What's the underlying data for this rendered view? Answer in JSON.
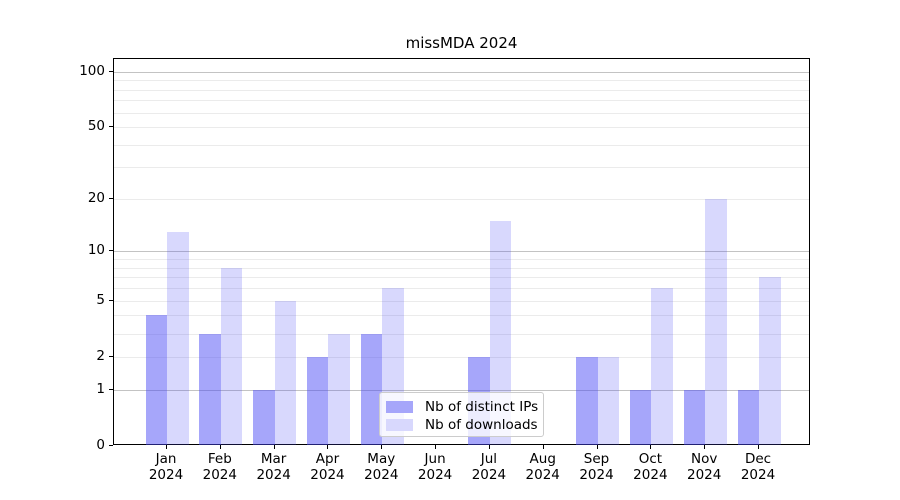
{
  "figure": {
    "title": "missMDA 2024"
  },
  "chart_data": {
    "type": "bar",
    "title": "missMDA 2024",
    "categories": [
      "Jan 2024",
      "Feb 2024",
      "Mar 2024",
      "Apr 2024",
      "May 2024",
      "Jun 2024",
      "Jul 2024",
      "Aug 2024",
      "Sep 2024",
      "Oct 2024",
      "Nov 2024",
      "Dec 2024"
    ],
    "series": [
      {
        "name": "Nb of distinct IPs",
        "color": "#4646f5",
        "opacity": 0.48,
        "values": [
          4,
          3,
          1,
          2,
          3,
          0,
          2,
          0,
          2,
          1,
          1,
          1
        ]
      },
      {
        "name": "Nb of downloads",
        "color": "#4646f5",
        "opacity": 0.21,
        "values": [
          13,
          8,
          5,
          3,
          6,
          0,
          15,
          0,
          2,
          6,
          20,
          7
        ]
      }
    ],
    "xlabel": "",
    "ylabel": "",
    "y_axis": {
      "scale": "log1p",
      "ylim": [
        0,
        117
      ],
      "tick_values": [
        0,
        1,
        2,
        5,
        10,
        20,
        50,
        100
      ],
      "tick_labels": [
        "0",
        "1",
        "2",
        "5",
        "10",
        "20",
        "50",
        "100"
      ],
      "major_gridlines": [
        1,
        10,
        100
      ],
      "minor_gridlines": [
        2,
        3,
        4,
        5,
        6,
        7,
        8,
        9,
        20,
        30,
        40,
        50,
        60,
        70,
        80,
        90
      ]
    },
    "grid": true,
    "legend": {
      "position": "lower-center",
      "entries": [
        "Nb of distinct IPs",
        "Nb of downloads"
      ]
    },
    "colors": {
      "grid_major": "#c3c3c3",
      "grid_minor": "#ebebeb",
      "axis": "#000000",
      "background": "#ffffff"
    }
  }
}
